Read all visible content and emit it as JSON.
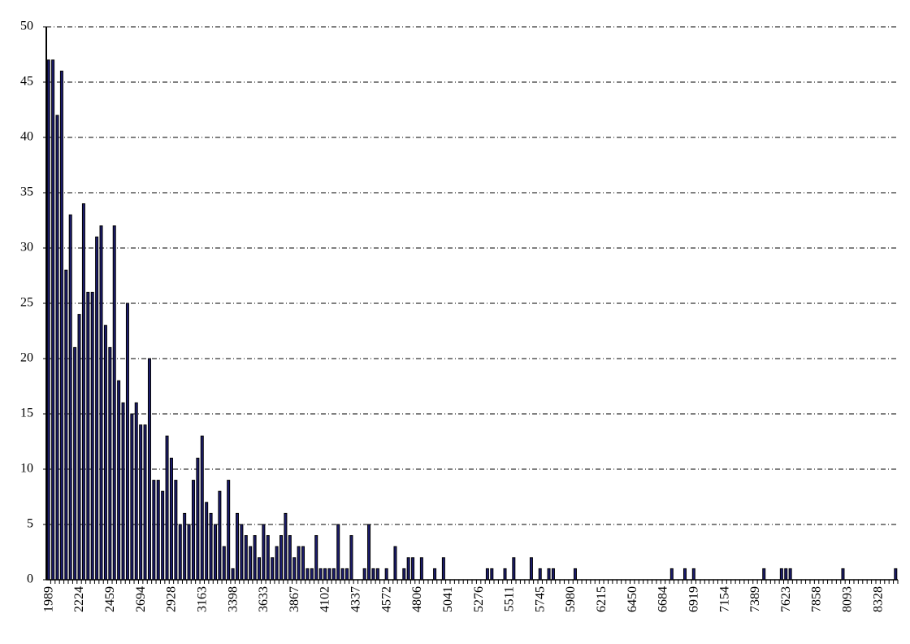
{
  "chart_data": {
    "type": "bar",
    "categories": [
      "1989",
      null,
      null,
      null,
      null,
      null,
      null,
      "2224",
      null,
      null,
      null,
      null,
      null,
      null,
      "2459",
      null,
      null,
      null,
      null,
      null,
      null,
      "2694",
      null,
      null,
      null,
      null,
      null,
      null,
      "2928",
      null,
      null,
      null,
      null,
      null,
      null,
      "3163",
      null,
      null,
      null,
      null,
      null,
      null,
      "3398",
      null,
      null,
      null,
      null,
      null,
      null,
      "3633",
      null,
      null,
      null,
      null,
      null,
      null,
      "3867",
      null,
      null,
      null,
      null,
      null,
      null,
      "4102",
      null,
      null,
      null,
      null,
      null,
      null,
      "4337",
      null,
      null,
      null,
      null,
      null,
      null,
      "4572",
      null,
      null,
      null,
      null,
      null,
      null,
      "4806",
      null,
      null,
      null,
      null,
      null,
      null,
      "5041",
      null,
      null,
      null,
      null,
      null,
      null,
      "5276",
      null,
      null,
      null,
      null,
      null,
      null,
      "5511",
      null,
      null,
      null,
      null,
      null,
      null,
      "5745",
      null,
      null,
      null,
      null,
      null,
      null,
      "5980",
      null,
      null,
      null,
      null,
      null,
      null,
      "6215",
      null,
      null,
      null,
      null,
      null,
      null,
      "6450",
      null,
      null,
      null,
      null,
      null,
      null,
      "6684",
      null,
      null,
      null,
      null,
      null,
      null,
      "6919",
      null,
      null,
      null,
      null,
      null,
      null,
      "7154",
      null,
      null,
      null,
      null,
      null,
      null,
      "7389",
      null,
      null,
      null,
      null,
      null,
      null,
      "7623",
      null,
      null,
      null,
      null,
      null,
      null,
      "7858",
      null,
      null,
      null,
      null,
      null,
      null,
      "8093",
      null,
      null,
      null,
      null,
      null,
      null,
      "8328",
      null,
      null,
      null,
      null
    ],
    "values": [
      47,
      47,
      42,
      46,
      28,
      33,
      21,
      24,
      34,
      26,
      26,
      31,
      32,
      23,
      21,
      32,
      18,
      16,
      25,
      15,
      16,
      14,
      14,
      20,
      9,
      9,
      8,
      13,
      11,
      9,
      5,
      6,
      5,
      9,
      11,
      13,
      7,
      6,
      5,
      8,
      3,
      9,
      1,
      6,
      5,
      4,
      3,
      4,
      2,
      5,
      4,
      2,
      3,
      4,
      6,
      4,
      2,
      3,
      3,
      1,
      1,
      4,
      1,
      1,
      1,
      1,
      5,
      1,
      1,
      4,
      0,
      0,
      1,
      5,
      1,
      1,
      0,
      1,
      0,
      3,
      0,
      1,
      2,
      2,
      0,
      2,
      0,
      0,
      1,
      0,
      2,
      0,
      0,
      0,
      0,
      0,
      0,
      0,
      0,
      0,
      1,
      1,
      0,
      0,
      1,
      0,
      2,
      0,
      0,
      0,
      2,
      0,
      1,
      0,
      1,
      1,
      0,
      0,
      0,
      0,
      1,
      0,
      0,
      0,
      0,
      0,
      0,
      0,
      0,
      0,
      0,
      0,
      0,
      0,
      0,
      0,
      0,
      0,
      0,
      0,
      0,
      0,
      1,
      0,
      0,
      1,
      0,
      1,
      0,
      0,
      0,
      0,
      0,
      0,
      0,
      0,
      0,
      0,
      0,
      0,
      0,
      0,
      0,
      1,
      0,
      0,
      0,
      1,
      1,
      1,
      0,
      0,
      0,
      0,
      0,
      0,
      0,
      0,
      0,
      0,
      0,
      1,
      0,
      0,
      0,
      0,
      0,
      0,
      0,
      0,
      0,
      0,
      0,
      1
    ],
    "color": "#1c1c6e",
    "ylim": [
      0,
      50
    ],
    "yticks": [
      0,
      5,
      10,
      15,
      20,
      25,
      30,
      35,
      40,
      45,
      50
    ],
    "grid": true
  }
}
